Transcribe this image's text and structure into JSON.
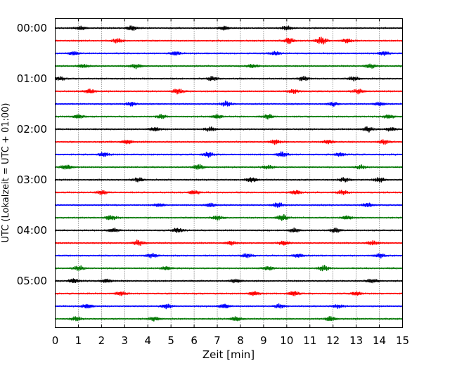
{
  "chart_data": {
    "type": "line",
    "title": "",
    "xlabel": "Zeit  [min]",
    "ylabel": "UTC (Lokalzeit = UTC + 01:00)",
    "xlim": [
      0,
      15
    ],
    "x_ticks": [
      "0",
      "1",
      "2",
      "3",
      "4",
      "5",
      "6",
      "7",
      "8",
      "9",
      "10",
      "11",
      "12",
      "13",
      "14",
      "15"
    ],
    "y_ticks": [
      "00:00",
      "01:00",
      "02:00",
      "03:00",
      "04:00",
      "05:00"
    ],
    "grid": "vertical dotted lines at each minute",
    "trace_interval_min": 15,
    "trace_colors": [
      "#000000",
      "#ff0000",
      "#0000ff",
      "#007700"
    ],
    "traces": [
      {
        "start": "00:00",
        "bursts": [
          [
            1.1,
            0.45
          ],
          [
            3.3,
            0.6
          ],
          [
            7.3,
            0.5
          ],
          [
            10.0,
            0.45
          ]
        ]
      },
      {
        "start": "00:15",
        "bursts": [
          [
            2.7,
            0.5
          ],
          [
            10.1,
            0.7
          ],
          [
            11.5,
            0.85
          ],
          [
            12.6,
            0.5
          ]
        ]
      },
      {
        "start": "00:30",
        "bursts": [
          [
            0.8,
            0.45
          ],
          [
            5.2,
            0.5
          ],
          [
            9.5,
            0.5
          ],
          [
            14.2,
            0.5
          ]
        ]
      },
      {
        "start": "00:45",
        "bursts": [
          [
            1.2,
            0.5
          ],
          [
            3.5,
            0.55
          ],
          [
            8.5,
            0.5
          ],
          [
            13.6,
            0.5
          ]
        ]
      },
      {
        "start": "01:00",
        "bursts": [
          [
            0.2,
            0.4
          ],
          [
            6.8,
            0.45
          ],
          [
            10.7,
            0.5
          ],
          [
            12.9,
            0.45
          ]
        ]
      },
      {
        "start": "01:15",
        "bursts": [
          [
            1.5,
            0.55
          ],
          [
            5.3,
            0.6
          ],
          [
            10.3,
            0.5
          ],
          [
            13.1,
            0.5
          ]
        ]
      },
      {
        "start": "01:30",
        "bursts": [
          [
            3.3,
            0.5
          ],
          [
            7.4,
            0.6
          ],
          [
            12.0,
            0.45
          ],
          [
            14.0,
            0.5
          ]
        ]
      },
      {
        "start": "01:45",
        "bursts": [
          [
            1.0,
            0.5
          ],
          [
            4.6,
            0.45
          ],
          [
            7.0,
            0.5
          ],
          [
            9.2,
            0.5
          ],
          [
            14.4,
            0.5
          ]
        ]
      },
      {
        "start": "02:00",
        "bursts": [
          [
            4.3,
            0.45
          ],
          [
            6.7,
            0.45
          ],
          [
            13.5,
            0.6
          ],
          [
            14.5,
            0.45
          ]
        ]
      },
      {
        "start": "02:15",
        "bursts": [
          [
            3.1,
            0.55
          ],
          [
            9.5,
            0.55
          ],
          [
            11.8,
            0.45
          ],
          [
            14.2,
            0.5
          ]
        ]
      },
      {
        "start": "02:30",
        "bursts": [
          [
            2.1,
            0.5
          ],
          [
            6.6,
            0.6
          ],
          [
            9.8,
            0.6
          ],
          [
            12.3,
            0.5
          ]
        ]
      },
      {
        "start": "02:45",
        "bursts": [
          [
            0.5,
            0.6
          ],
          [
            6.2,
            0.6
          ],
          [
            9.2,
            0.45
          ],
          [
            13.2,
            0.45
          ]
        ]
      },
      {
        "start": "03:00",
        "bursts": [
          [
            3.6,
            0.5
          ],
          [
            8.5,
            0.6
          ],
          [
            12.5,
            0.45
          ],
          [
            14.0,
            0.55
          ]
        ]
      },
      {
        "start": "03:15",
        "bursts": [
          [
            2.0,
            0.45
          ],
          [
            6.0,
            0.5
          ],
          [
            10.4,
            0.55
          ],
          [
            12.4,
            0.45
          ]
        ]
      },
      {
        "start": "03:30",
        "bursts": [
          [
            4.5,
            0.45
          ],
          [
            6.7,
            0.45
          ],
          [
            9.6,
            0.55
          ],
          [
            13.5,
            0.5
          ]
        ]
      },
      {
        "start": "03:45",
        "bursts": [
          [
            2.4,
            0.55
          ],
          [
            7.0,
            0.5
          ],
          [
            9.8,
            0.75
          ],
          [
            12.6,
            0.5
          ]
        ]
      },
      {
        "start": "04:00",
        "bursts": [
          [
            2.5,
            0.5
          ],
          [
            5.3,
            0.6
          ],
          [
            10.3,
            0.45
          ],
          [
            12.1,
            0.5
          ]
        ]
      },
      {
        "start": "04:15",
        "bursts": [
          [
            3.6,
            0.6
          ],
          [
            7.6,
            0.45
          ],
          [
            9.9,
            0.55
          ],
          [
            13.7,
            0.5
          ]
        ]
      },
      {
        "start": "04:30",
        "bursts": [
          [
            4.2,
            0.5
          ],
          [
            8.3,
            0.45
          ],
          [
            10.5,
            0.5
          ],
          [
            14.0,
            0.5
          ]
        ]
      },
      {
        "start": "04:45",
        "bursts": [
          [
            1.0,
            0.55
          ],
          [
            4.8,
            0.45
          ],
          [
            9.2,
            0.5
          ],
          [
            11.6,
            0.6
          ]
        ]
      },
      {
        "start": "05:00",
        "bursts": [
          [
            0.8,
            0.55
          ],
          [
            2.2,
            0.45
          ],
          [
            7.8,
            0.45
          ],
          [
            13.7,
            0.5
          ]
        ]
      },
      {
        "start": "05:15",
        "bursts": [
          [
            2.8,
            0.5
          ],
          [
            8.6,
            0.55
          ],
          [
            10.3,
            0.6
          ],
          [
            13.0,
            0.45
          ]
        ]
      },
      {
        "start": "05:30",
        "bursts": [
          [
            1.4,
            0.6
          ],
          [
            4.8,
            0.5
          ],
          [
            7.3,
            0.6
          ],
          [
            9.7,
            0.45
          ],
          [
            12.2,
            0.45
          ]
        ]
      },
      {
        "start": "05:45",
        "bursts": [
          [
            0.9,
            0.45
          ],
          [
            4.3,
            0.5
          ],
          [
            7.8,
            0.5
          ],
          [
            11.9,
            0.6
          ]
        ]
      }
    ]
  }
}
